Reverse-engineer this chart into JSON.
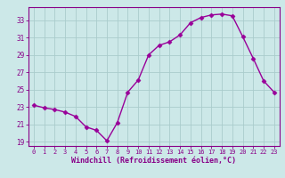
{
  "x": [
    0,
    1,
    2,
    3,
    4,
    5,
    6,
    7,
    8,
    9,
    10,
    11,
    12,
    13,
    14,
    15,
    16,
    17,
    18,
    19,
    20,
    21,
    22,
    23
  ],
  "y": [
    23.2,
    22.9,
    22.7,
    22.4,
    21.9,
    20.7,
    20.3,
    19.1,
    21.2,
    24.7,
    26.1,
    29.0,
    30.1,
    30.5,
    31.3,
    32.7,
    33.3,
    33.6,
    33.7,
    33.5,
    31.1,
    28.6,
    26.0,
    24.7
  ],
  "xlim": [
    -0.5,
    23.5
  ],
  "ylim": [
    18.5,
    34.5
  ],
  "yticks": [
    19,
    21,
    23,
    25,
    27,
    29,
    31,
    33
  ],
  "xticks": [
    0,
    1,
    2,
    3,
    4,
    5,
    6,
    7,
    8,
    9,
    10,
    11,
    12,
    13,
    14,
    15,
    16,
    17,
    18,
    19,
    20,
    21,
    22,
    23
  ],
  "xlabel": "Windchill (Refroidissement éolien,°C)",
  "line_color": "#990099",
  "marker": "D",
  "marker_size": 2.5,
  "bg_color": "#cce8e8",
  "grid_color": "#aacccc",
  "tick_color": "#880088",
  "spine_color": "#880088",
  "tick_fontsize": 5.0,
  "xlabel_fontsize": 6.0,
  "linewidth": 1.0
}
